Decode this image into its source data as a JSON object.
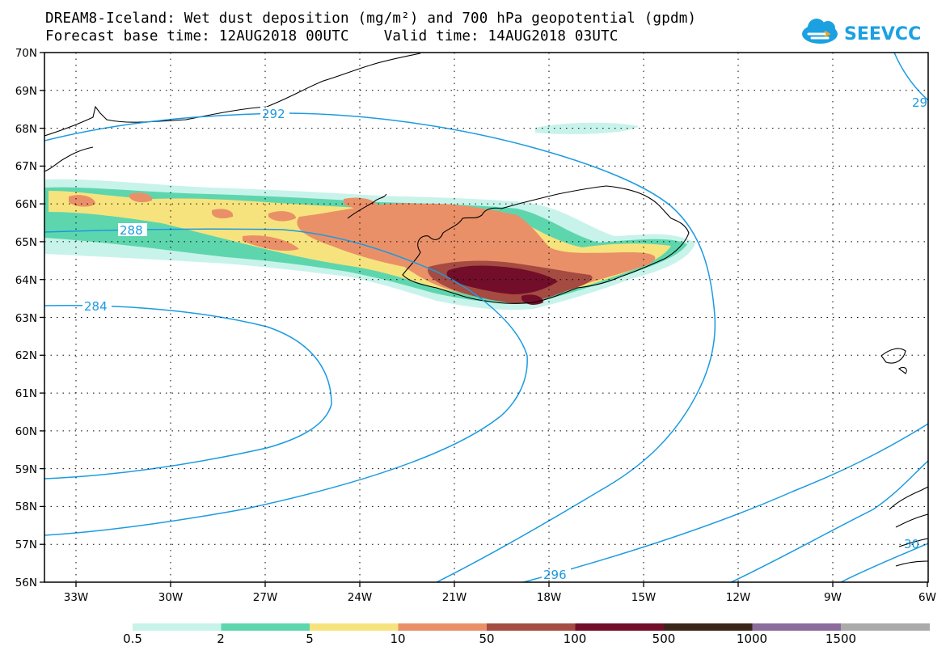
{
  "header": {
    "line1": "DREAM8-Iceland: Wet dust deposition (mg/m²) and 700 hPa geopotential (gpdm)",
    "line2": "Forecast base time: 12AUG2018 00UTC    Valid time: 14AUG2018 03UTC"
  },
  "logo": {
    "text": "SEEVCCC",
    "icon": "cloud-icon",
    "color": "#1ba1e2"
  },
  "axes": {
    "lat_labels": [
      "70N",
      "69N",
      "68N",
      "67N",
      "66N",
      "65N",
      "64N",
      "63N",
      "62N",
      "61N",
      "60N",
      "59N",
      "58N",
      "57N",
      "56N"
    ],
    "lon_labels": [
      "33W",
      "30W",
      "27W",
      "24W",
      "21W",
      "18W",
      "15W",
      "12W",
      "9W",
      "6W"
    ]
  },
  "contours": {
    "color": "#1b9be0",
    "labels": [
      "292",
      "288",
      "284",
      "296",
      "29",
      "30"
    ]
  },
  "legend": {
    "labels": [
      "0.5",
      "2",
      "5",
      "10",
      "50",
      "100",
      "500",
      "1000",
      "1500"
    ],
    "colors": [
      "#c8f3ea",
      "#5ed6ad",
      "#f7e37d",
      "#ea9068",
      "#a54b42",
      "#720e29",
      "#3a2517",
      "#8c6c9c",
      "#aaaaaa"
    ]
  }
}
